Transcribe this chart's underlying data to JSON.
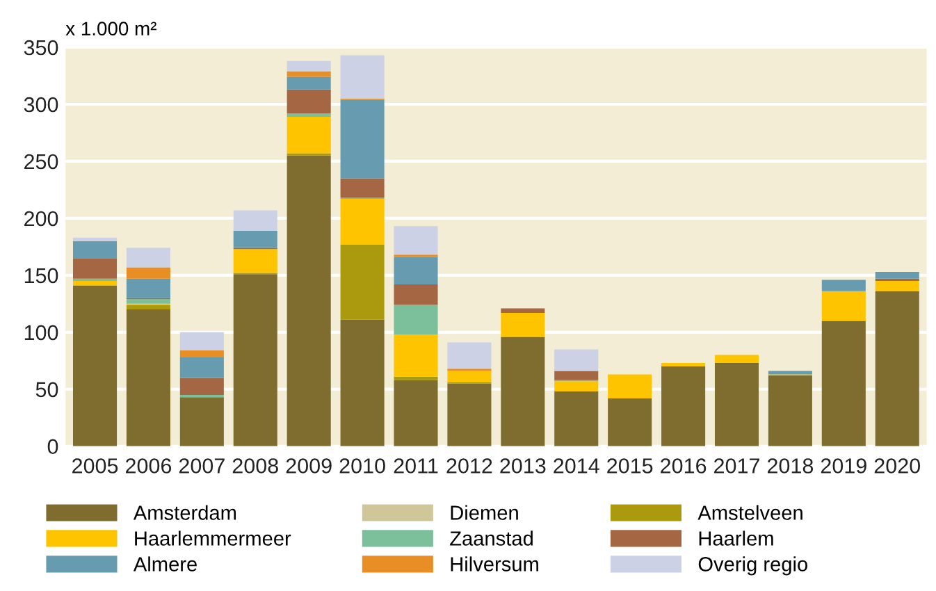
{
  "chart_data": {
    "type": "bar",
    "stacked": true,
    "ylabel": "x 1.000 m²",
    "categories": [
      "2005",
      "2006",
      "2007",
      "2008",
      "2009",
      "2010",
      "2011",
      "2012",
      "2013",
      "2014",
      "2015",
      "2016",
      "2017",
      "2018",
      "2019",
      "2020"
    ],
    "series": [
      {
        "name": "Amsterdam",
        "color": "#7f6d2f",
        "values": [
          141,
          120,
          43,
          151,
          255,
          111,
          58,
          55,
          96,
          48,
          42,
          70,
          73,
          62,
          110,
          136
        ]
      },
      {
        "name": "Diemen",
        "color": "#cfc79a",
        "values": [
          0,
          0,
          0,
          0,
          0,
          0,
          0,
          0,
          0,
          0,
          0,
          0,
          0,
          0,
          0,
          0
        ]
      },
      {
        "name": "Amstelveen",
        "color": "#ab9a0e",
        "values": [
          0,
          4,
          0,
          1,
          2,
          66,
          3,
          1,
          0,
          0,
          0,
          0,
          0,
          0,
          0,
          0
        ]
      },
      {
        "name": "Haarlemmermeer",
        "color": "#ffc400",
        "values": [
          4,
          1,
          0,
          21,
          32,
          40,
          37,
          10,
          21,
          9,
          21,
          3,
          7,
          1,
          26,
          9
        ]
      },
      {
        "name": "Zaanstad",
        "color": "#7bbf9b",
        "values": [
          2,
          4,
          2,
          0,
          3,
          1,
          26,
          0,
          0,
          1,
          0,
          0,
          0,
          0,
          0,
          0
        ]
      },
      {
        "name": "Haarlem",
        "color": "#a56743",
        "values": [
          18,
          1,
          15,
          1,
          21,
          17,
          18,
          0,
          4,
          8,
          0,
          0,
          0,
          0,
          0,
          2
        ]
      },
      {
        "name": "Almere",
        "color": "#679bb0",
        "values": [
          15,
          17,
          18,
          15,
          11,
          69,
          24,
          0,
          0,
          0,
          0,
          0,
          0,
          3,
          10,
          6
        ]
      },
      {
        "name": "Hilversum",
        "color": "#e98e25",
        "values": [
          0,
          10,
          6,
          0,
          5,
          1,
          2,
          2,
          0,
          0,
          0,
          0,
          0,
          0,
          0,
          0
        ]
      },
      {
        "name": "Overig regio",
        "color": "#ccd1e6",
        "values": [
          3,
          17,
          16,
          18,
          9,
          38,
          25,
          23,
          null,
          19,
          null,
          null,
          0,
          0,
          null,
          null
        ]
      }
    ],
    "ylim": [
      0,
      350
    ],
    "yticks": [
      0,
      50,
      100,
      150,
      200,
      250,
      300,
      350
    ],
    "grid": "y",
    "legend": "bottom"
  }
}
